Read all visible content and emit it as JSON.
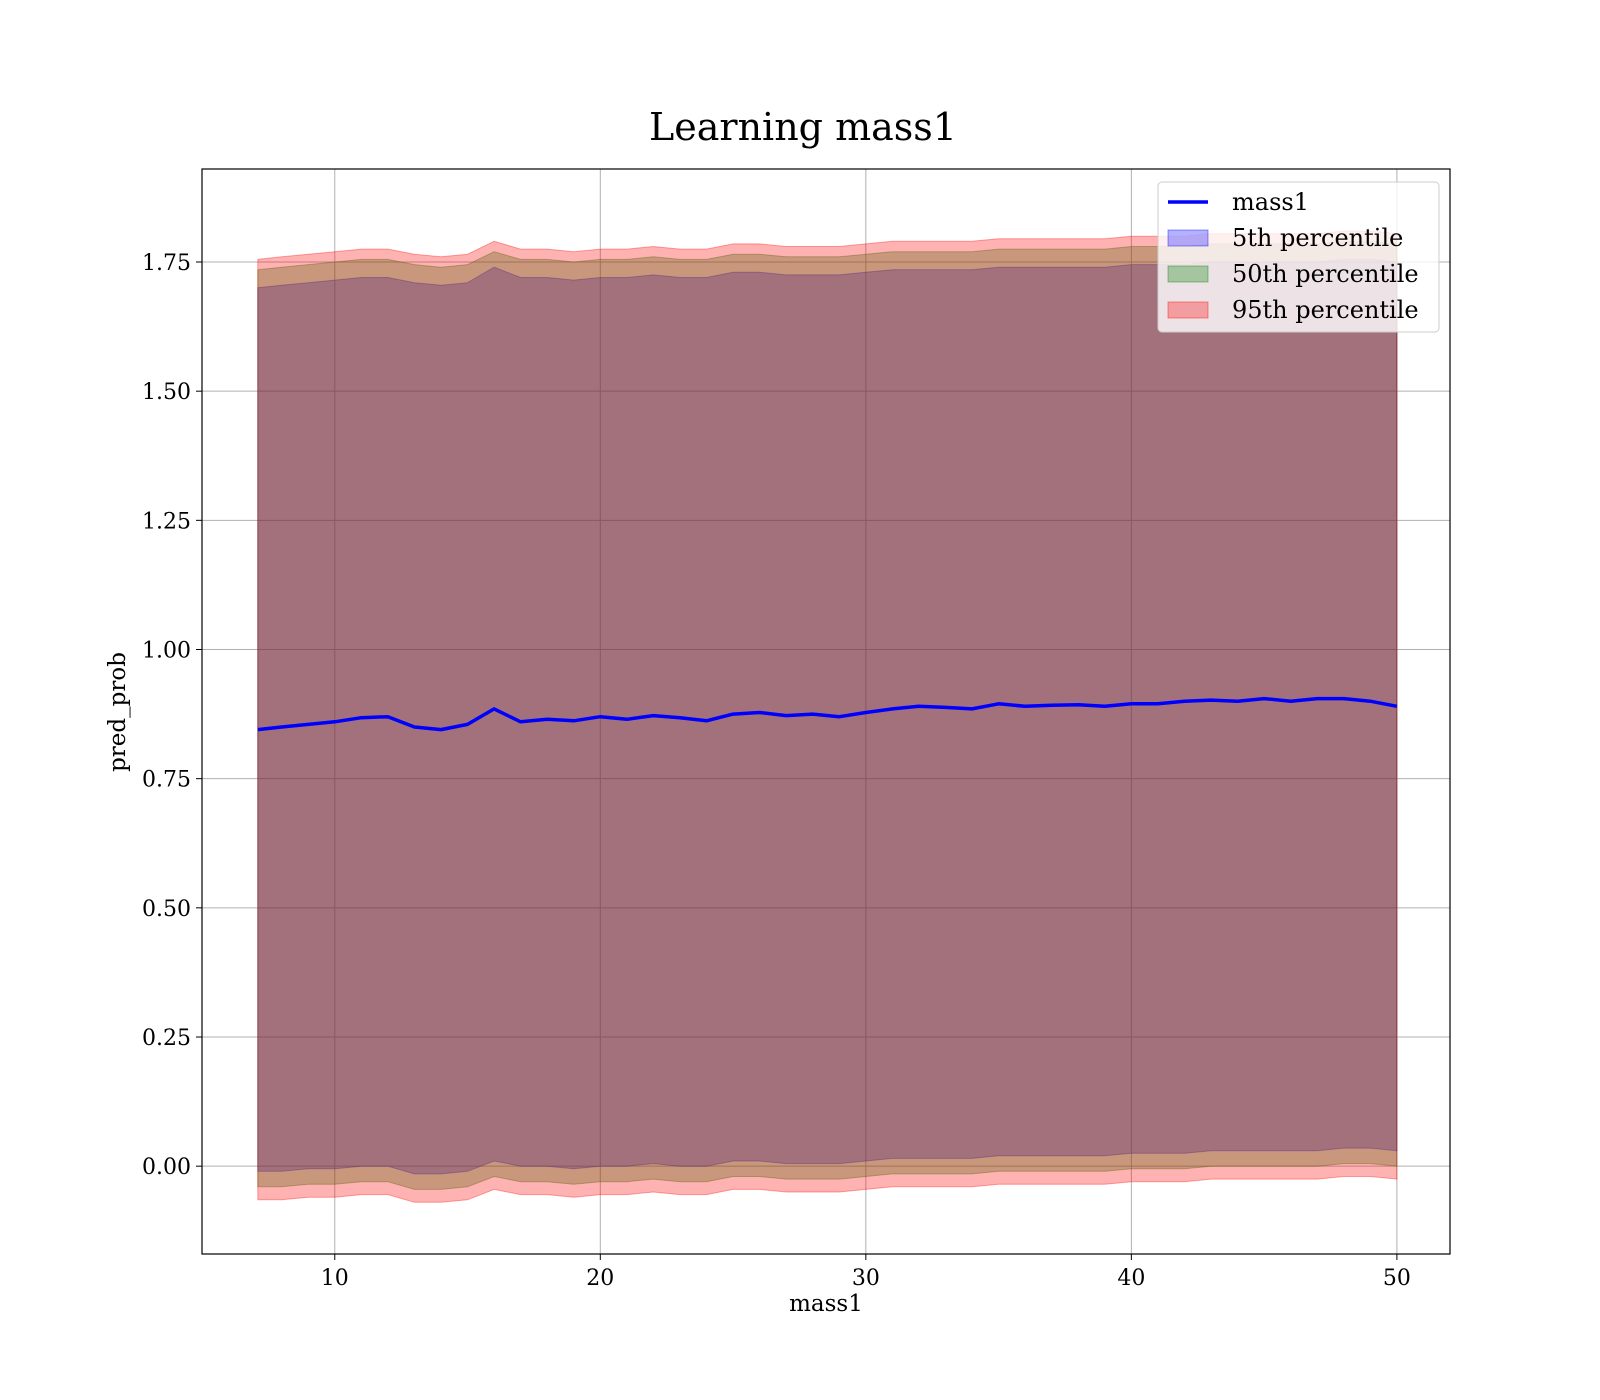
{
  "chart_data": {
    "type": "line",
    "title": "Learning mass1",
    "xlabel": "mass1",
    "ylabel": "pred_prob",
    "xlim": [
      5,
      52
    ],
    "ylim": [
      -0.17,
      1.93
    ],
    "xticks": [
      "10",
      "20",
      "30",
      "40",
      "50"
    ],
    "xtick_values": [
      10,
      20,
      30,
      40,
      50
    ],
    "yticks": [
      "0.00",
      "0.25",
      "0.50",
      "0.75",
      "1.00",
      "1.25",
      "1.50",
      "1.75"
    ],
    "ytick_values": [
      0.0,
      0.25,
      0.5,
      0.75,
      1.0,
      1.25,
      1.5,
      1.75
    ],
    "grid": true,
    "legend_position": "top-right",
    "x": [
      7.1,
      8,
      9,
      10,
      11,
      12,
      13,
      14,
      15,
      16,
      17,
      18,
      19,
      20,
      21,
      22,
      23,
      24,
      25,
      26,
      27,
      28,
      29,
      30,
      31,
      32,
      33,
      34,
      35,
      36,
      37,
      38,
      39,
      40,
      41,
      42,
      43,
      44,
      45,
      46,
      47,
      48,
      49,
      50
    ],
    "series": [
      {
        "name": "mass1",
        "kind": "line",
        "color": "#0000ff",
        "values": [
          0.845,
          0.85,
          0.855,
          0.86,
          0.868,
          0.87,
          0.85,
          0.845,
          0.855,
          0.885,
          0.86,
          0.865,
          0.862,
          0.87,
          0.865,
          0.872,
          0.868,
          0.862,
          0.875,
          0.878,
          0.872,
          0.875,
          0.87,
          0.878,
          0.885,
          0.89,
          0.888,
          0.885,
          0.895,
          0.89,
          0.892,
          0.893,
          0.89,
          0.895,
          0.895,
          0.9,
          0.902,
          0.9,
          0.905,
          0.9,
          0.905,
          0.905,
          0.9,
          0.89
        ]
      },
      {
        "name": "5th percentile",
        "kind": "band",
        "color": "#0000ff",
        "lower": [
          -0.01,
          -0.01,
          -0.005,
          -0.005,
          0.0,
          0.0,
          -0.015,
          -0.015,
          -0.01,
          0.01,
          0.0,
          0.0,
          -0.005,
          0.0,
          0.0,
          0.005,
          0.0,
          0.0,
          0.01,
          0.01,
          0.005,
          0.005,
          0.005,
          0.01,
          0.015,
          0.015,
          0.015,
          0.015,
          0.02,
          0.02,
          0.02,
          0.02,
          0.02,
          0.025,
          0.025,
          0.025,
          0.03,
          0.03,
          0.03,
          0.03,
          0.03,
          0.035,
          0.035,
          0.03
        ],
        "upper": [
          1.7,
          1.705,
          1.71,
          1.715,
          1.72,
          1.72,
          1.71,
          1.705,
          1.71,
          1.74,
          1.72,
          1.72,
          1.715,
          1.72,
          1.72,
          1.725,
          1.72,
          1.72,
          1.73,
          1.73,
          1.725,
          1.725,
          1.725,
          1.73,
          1.735,
          1.735,
          1.735,
          1.735,
          1.74,
          1.74,
          1.74,
          1.74,
          1.74,
          1.745,
          1.745,
          1.745,
          1.75,
          1.75,
          1.75,
          1.75,
          1.75,
          1.755,
          1.755,
          1.75
        ]
      },
      {
        "name": "50th percentile",
        "kind": "band",
        "color": "#008000",
        "lower": [
          -0.04,
          -0.04,
          -0.035,
          -0.035,
          -0.03,
          -0.03,
          -0.045,
          -0.045,
          -0.04,
          -0.02,
          -0.03,
          -0.03,
          -0.035,
          -0.03,
          -0.03,
          -0.025,
          -0.03,
          -0.03,
          -0.02,
          -0.02,
          -0.025,
          -0.025,
          -0.025,
          -0.02,
          -0.015,
          -0.015,
          -0.015,
          -0.015,
          -0.01,
          -0.01,
          -0.01,
          -0.01,
          -0.01,
          -0.005,
          -0.005,
          -0.005,
          0.0,
          0.0,
          0.0,
          0.0,
          0.0,
          0.005,
          0.005,
          0.0
        ],
        "upper": [
          1.735,
          1.74,
          1.745,
          1.75,
          1.755,
          1.755,
          1.745,
          1.74,
          1.745,
          1.77,
          1.755,
          1.755,
          1.75,
          1.755,
          1.755,
          1.76,
          1.755,
          1.755,
          1.765,
          1.765,
          1.76,
          1.76,
          1.76,
          1.765,
          1.77,
          1.77,
          1.77,
          1.77,
          1.775,
          1.775,
          1.775,
          1.775,
          1.775,
          1.78,
          1.78,
          1.78,
          1.785,
          1.785,
          1.785,
          1.785,
          1.785,
          1.79,
          1.79,
          1.785
        ]
      },
      {
        "name": "95th percentile",
        "kind": "band",
        "color": "#ff0000",
        "lower": [
          -0.065,
          -0.065,
          -0.06,
          -0.06,
          -0.055,
          -0.055,
          -0.07,
          -0.07,
          -0.065,
          -0.045,
          -0.055,
          -0.055,
          -0.06,
          -0.055,
          -0.055,
          -0.05,
          -0.055,
          -0.055,
          -0.045,
          -0.045,
          -0.05,
          -0.05,
          -0.05,
          -0.045,
          -0.04,
          -0.04,
          -0.04,
          -0.04,
          -0.035,
          -0.035,
          -0.035,
          -0.035,
          -0.035,
          -0.03,
          -0.03,
          -0.03,
          -0.025,
          -0.025,
          -0.025,
          -0.025,
          -0.025,
          -0.02,
          -0.02,
          -0.025
        ],
        "upper": [
          1.755,
          1.76,
          1.765,
          1.77,
          1.775,
          1.775,
          1.765,
          1.76,
          1.765,
          1.79,
          1.775,
          1.775,
          1.77,
          1.775,
          1.775,
          1.78,
          1.775,
          1.775,
          1.785,
          1.785,
          1.78,
          1.78,
          1.78,
          1.785,
          1.79,
          1.79,
          1.79,
          1.79,
          1.795,
          1.795,
          1.795,
          1.795,
          1.795,
          1.8,
          1.8,
          1.8,
          1.805,
          1.805,
          1.805,
          1.805,
          1.805,
          1.81,
          1.81,
          1.805
        ]
      }
    ],
    "legend": [
      {
        "label": "mass1",
        "kind": "line",
        "color": "#0000ff"
      },
      {
        "label": "5th percentile",
        "kind": "patch",
        "color": "#0000ff"
      },
      {
        "label": "50th percentile",
        "kind": "patch",
        "color": "#008000"
      },
      {
        "label": "95th percentile",
        "kind": "patch",
        "color": "#ff0000"
      }
    ]
  }
}
